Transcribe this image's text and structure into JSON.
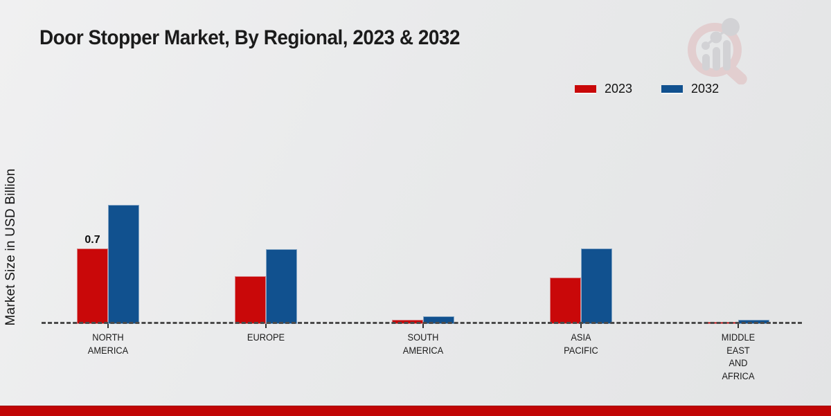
{
  "title": "Door Stopper Market, By Regional, 2023 & 2032",
  "y_axis_label": "Market Size in USD Billion",
  "logo_icon": "market-research-future-magnifier-logo",
  "colors": {
    "series_2023_red": "#c90809",
    "series_2032_blue": "#11518f",
    "footer_band_red": "#c10505",
    "axis_line": "#4a4a4a",
    "background": "#e9eaeb"
  },
  "legend": {
    "position": "top-right",
    "items": [
      {
        "label": "2023",
        "color": "#c90809"
      },
      {
        "label": "2032",
        "color": "#11518f"
      }
    ]
  },
  "chart_data": {
    "type": "bar",
    "title": "Door Stopper Market, By Regional, 2023 & 2032",
    "xlabel": "",
    "ylabel": "Market Size in USD Billion",
    "categories": [
      "NORTH AMERICA",
      "EUROPE",
      "SOUTH AMERICA",
      "ASIA PACIFIC",
      "MIDDLE EAST AND AFRICA"
    ],
    "category_label_lines": [
      [
        "NORTH",
        "AMERICA"
      ],
      [
        "EUROPE"
      ],
      [
        "SOUTH",
        "AMERICA"
      ],
      [
        "ASIA",
        "PACIFIC"
      ],
      [
        "MIDDLE",
        "EAST",
        "AND",
        "AFRICA"
      ]
    ],
    "series": [
      {
        "name": "2023",
        "color": "#c90809",
        "values": [
          0.7,
          0.44,
          0.04,
          0.43,
          0.02
        ]
      },
      {
        "name": "2032",
        "color": "#11518f",
        "values": [
          1.1,
          0.69,
          0.07,
          0.7,
          0.04
        ]
      }
    ],
    "data_labels": [
      {
        "series": 0,
        "category": 0,
        "text": "0.7"
      }
    ],
    "ylim": [
      0,
      1.2
    ],
    "grid": false,
    "baseline_style": "dashed",
    "legend_position": "top-right"
  }
}
